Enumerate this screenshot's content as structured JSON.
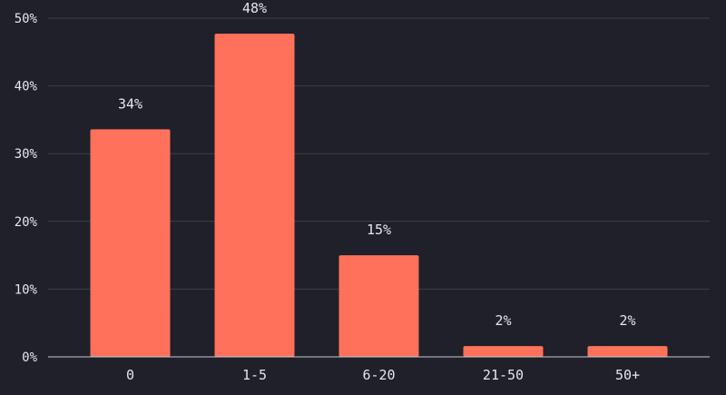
{
  "colors": {
    "background": "#1f2029",
    "bar": "#ff715a",
    "grid": "#3d4049",
    "axis": "#c9cad0",
    "text": "#e6e6ea"
  },
  "chart_data": {
    "type": "bar",
    "title": "",
    "xlabel": "",
    "ylabel": "",
    "categories": [
      "0",
      "1-5",
      "6-20",
      "21-50",
      "50+"
    ],
    "values": [
      33.6,
      47.7,
      15.0,
      1.6,
      1.6
    ],
    "data_labels": [
      "34%",
      "48%",
      "15%",
      "2%",
      "2%"
    ],
    "ylim": [
      0,
      50
    ],
    "yticks": [
      0,
      10,
      20,
      30,
      40,
      50
    ],
    "ytick_labels": [
      "0%",
      "10%",
      "20%",
      "30%",
      "40%",
      "50%"
    ],
    "grid": true,
    "legend": "none"
  }
}
